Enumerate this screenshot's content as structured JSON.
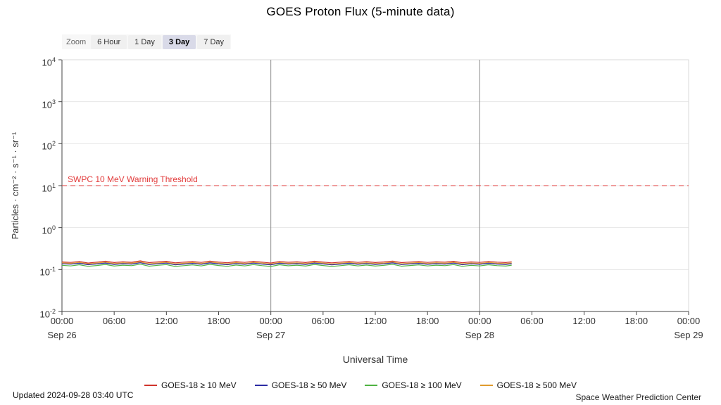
{
  "title": "GOES Proton Flux (5-minute data)",
  "zoom": {
    "label": "Zoom",
    "options": [
      {
        "label": "6 Hour",
        "active": false
      },
      {
        "label": "1 Day",
        "active": false
      },
      {
        "label": "3 Day",
        "active": true
      },
      {
        "label": "7 Day",
        "active": false
      }
    ]
  },
  "footer": {
    "updated": "Updated 2024-09-28 03:40 UTC",
    "credit": "Space Weather Prediction Center"
  },
  "chart_data": {
    "type": "line",
    "title": "GOES Proton Flux (5-minute data)",
    "xlabel": "Universal Time",
    "ylabel": "Particles · cm⁻² · s⁻¹ · sr⁻¹",
    "x_range_hours": [
      0,
      72
    ],
    "ylim_log": [
      -2,
      4
    ],
    "y_log_exponents": [
      4,
      3,
      2,
      1,
      0,
      -1,
      -2
    ],
    "grid": true,
    "legend_position": "bottom",
    "day_boundaries_hours": [
      24,
      48
    ],
    "x_ticks": [
      {
        "t": 0,
        "label": "00:00"
      },
      {
        "t": 6,
        "label": "06:00"
      },
      {
        "t": 12,
        "label": "12:00"
      },
      {
        "t": 18,
        "label": "18:00"
      },
      {
        "t": 24,
        "label": "00:00"
      },
      {
        "t": 30,
        "label": "06:00"
      },
      {
        "t": 36,
        "label": "12:00"
      },
      {
        "t": 42,
        "label": "18:00"
      },
      {
        "t": 48,
        "label": "00:00"
      },
      {
        "t": 54,
        "label": "06:00"
      },
      {
        "t": 60,
        "label": "12:00"
      },
      {
        "t": 66,
        "label": "18:00"
      },
      {
        "t": 72,
        "label": "00:00"
      }
    ],
    "x_date_labels": [
      {
        "t": 0,
        "label": "Sep 26"
      },
      {
        "t": 24,
        "label": "Sep 27"
      },
      {
        "t": 48,
        "label": "Sep 28"
      },
      {
        "t": 72,
        "label": "Sep 29"
      }
    ],
    "threshold": {
      "value": 10,
      "label": "SWPC 10 MeV Warning Threshold",
      "color": "#e23b3b",
      "style": "dashed"
    },
    "x_hours": [
      0,
      1,
      2,
      3,
      4,
      5,
      6,
      7,
      8,
      9,
      10,
      11,
      12,
      13,
      14,
      15,
      16,
      17,
      18,
      19,
      20,
      21,
      22,
      23,
      24,
      25,
      26,
      27,
      28,
      29,
      30,
      31,
      32,
      33,
      34,
      35,
      36,
      37,
      38,
      39,
      40,
      41,
      42,
      43,
      44,
      45,
      46,
      47,
      48,
      49,
      50,
      51,
      51.67
    ],
    "series": [
      {
        "name": "GOES-18 ≥ 10 MeV",
        "color": "#d0342c",
        "values": [
          0.152,
          0.148,
          0.156,
          0.143,
          0.15,
          0.158,
          0.147,
          0.153,
          0.149,
          0.161,
          0.146,
          0.152,
          0.157,
          0.144,
          0.15,
          0.155,
          0.148,
          0.159,
          0.151,
          0.145,
          0.154,
          0.148,
          0.157,
          0.15,
          0.143,
          0.156,
          0.149,
          0.153,
          0.147,
          0.158,
          0.151,
          0.144,
          0.15,
          0.156,
          0.148,
          0.154,
          0.147,
          0.152,
          0.159,
          0.146,
          0.151,
          0.155,
          0.148,
          0.153,
          0.15,
          0.157,
          0.145,
          0.152,
          0.148,
          0.156,
          0.15,
          0.147,
          0.153
        ]
      },
      {
        "name": "GOES-18 ≥ 50 MeV",
        "color": "#2c2ca3",
        "values": [
          0.137,
          0.134,
          0.141,
          0.13,
          0.136,
          0.143,
          0.132,
          0.138,
          0.135,
          0.145,
          0.131,
          0.137,
          0.142,
          0.129,
          0.135,
          0.14,
          0.133,
          0.144,
          0.136,
          0.13,
          0.139,
          0.133,
          0.142,
          0.135,
          0.129,
          0.141,
          0.134,
          0.138,
          0.132,
          0.143,
          0.136,
          0.129,
          0.135,
          0.141,
          0.133,
          0.139,
          0.132,
          0.137,
          0.144,
          0.131,
          0.136,
          0.14,
          0.133,
          0.138,
          0.135,
          0.142,
          0.13,
          0.137,
          0.133,
          0.141,
          0.135,
          0.132,
          0.138
        ]
      },
      {
        "name": "GOES-18 ≥ 100 MeV",
        "color": "#4fb342",
        "values": [
          0.126,
          0.122,
          0.13,
          0.119,
          0.125,
          0.132,
          0.121,
          0.127,
          0.124,
          0.134,
          0.12,
          0.126,
          0.131,
          0.118,
          0.124,
          0.129,
          0.122,
          0.133,
          0.125,
          0.119,
          0.128,
          0.122,
          0.131,
          0.124,
          0.118,
          0.13,
          0.123,
          0.127,
          0.121,
          0.132,
          0.125,
          0.118,
          0.124,
          0.13,
          0.122,
          0.128,
          0.121,
          0.126,
          0.133,
          0.12,
          0.125,
          0.129,
          0.122,
          0.127,
          0.124,
          0.131,
          0.119,
          0.126,
          0.122,
          0.13,
          0.124,
          0.121,
          0.127
        ]
      },
      {
        "name": "GOES-18 ≥ 500 MeV",
        "color": "#e09b2d",
        "values": [
          0.144,
          0.14,
          0.148,
          0.136,
          0.142,
          0.15,
          0.138,
          0.145,
          0.141,
          0.152,
          0.137,
          0.143,
          0.149,
          0.135,
          0.141,
          0.147,
          0.139,
          0.151,
          0.143,
          0.136,
          0.146,
          0.139,
          0.148,
          0.142,
          0.135,
          0.147,
          0.14,
          0.144,
          0.138,
          0.15,
          0.143,
          0.135,
          0.141,
          0.148,
          0.139,
          0.145,
          0.138,
          0.143,
          0.151,
          0.137,
          0.142,
          0.147,
          0.139,
          0.145,
          0.141,
          0.149,
          0.136,
          0.143,
          0.139,
          0.148,
          0.141,
          0.138,
          0.144
        ]
      }
    ]
  }
}
